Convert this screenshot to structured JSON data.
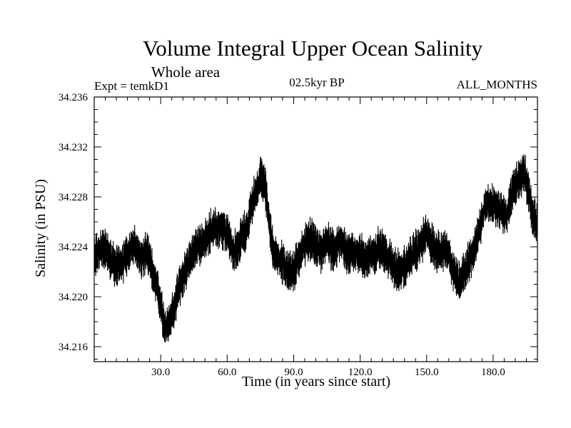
{
  "chart_data": {
    "type": "line",
    "title": "Volume Integral Upper Ocean Salinity",
    "subtitle": "Whole area",
    "info_left": "Expt = temkD1",
    "info_center": "02.5kyr BP",
    "info_right": "ALL_MONTHS",
    "xlabel": "Time (in years since start)",
    "ylabel": "Salinity (in PSU)",
    "xlim": [
      0,
      200
    ],
    "ylim": [
      34.2148,
      34.236
    ],
    "xticks": [
      30,
      60,
      90,
      120,
      150,
      180
    ],
    "xtick_labels": [
      "30.0",
      "60.0",
      "90.0",
      "120.0",
      "150.0",
      "180.0"
    ],
    "yticks": [
      34.216,
      34.22,
      34.224,
      34.228,
      34.232,
      34.236
    ],
    "ytick_labels": [
      "34.216",
      "34.220",
      "34.224",
      "34.228",
      "34.232",
      "34.236"
    ],
    "noise_amplitude": 0.0015,
    "series": [
      {
        "name": "Salinity",
        "x": [
          0,
          3,
          6,
          9,
          12,
          15,
          18,
          21,
          24,
          27,
          30,
          32,
          35,
          38,
          41,
          44,
          47,
          50,
          53,
          56,
          60,
          63,
          66,
          69,
          72,
          75,
          77,
          79,
          81,
          84,
          87,
          90,
          93,
          96,
          99,
          102,
          105,
          108,
          111,
          114,
          117,
          120,
          123,
          126,
          129,
          132,
          135,
          138,
          141,
          144,
          147,
          150,
          153,
          156,
          159,
          162,
          165,
          168,
          171,
          174,
          177,
          180,
          183,
          186,
          189,
          192,
          194,
          196,
          198,
          200
        ],
        "y": [
          34.223,
          34.224,
          34.2235,
          34.2225,
          34.2225,
          34.2235,
          34.224,
          34.223,
          34.2235,
          34.2215,
          34.2195,
          34.2175,
          34.2185,
          34.2205,
          34.222,
          34.2235,
          34.224,
          34.2245,
          34.2255,
          34.2255,
          34.225,
          34.2235,
          34.2245,
          34.2255,
          34.228,
          34.2295,
          34.229,
          34.226,
          34.2235,
          34.223,
          34.222,
          34.222,
          34.2235,
          34.2245,
          34.2245,
          34.2235,
          34.2245,
          34.2235,
          34.2245,
          34.2235,
          34.2235,
          34.2235,
          34.223,
          34.2235,
          34.224,
          34.2235,
          34.2225,
          34.222,
          34.2225,
          34.2235,
          34.224,
          34.225,
          34.224,
          34.2235,
          34.224,
          34.222,
          34.221,
          34.2225,
          34.2235,
          34.2255,
          34.2275,
          34.2275,
          34.227,
          34.2265,
          34.2285,
          34.2295,
          34.23,
          34.2285,
          34.2265,
          34.2255
        ]
      }
    ]
  }
}
